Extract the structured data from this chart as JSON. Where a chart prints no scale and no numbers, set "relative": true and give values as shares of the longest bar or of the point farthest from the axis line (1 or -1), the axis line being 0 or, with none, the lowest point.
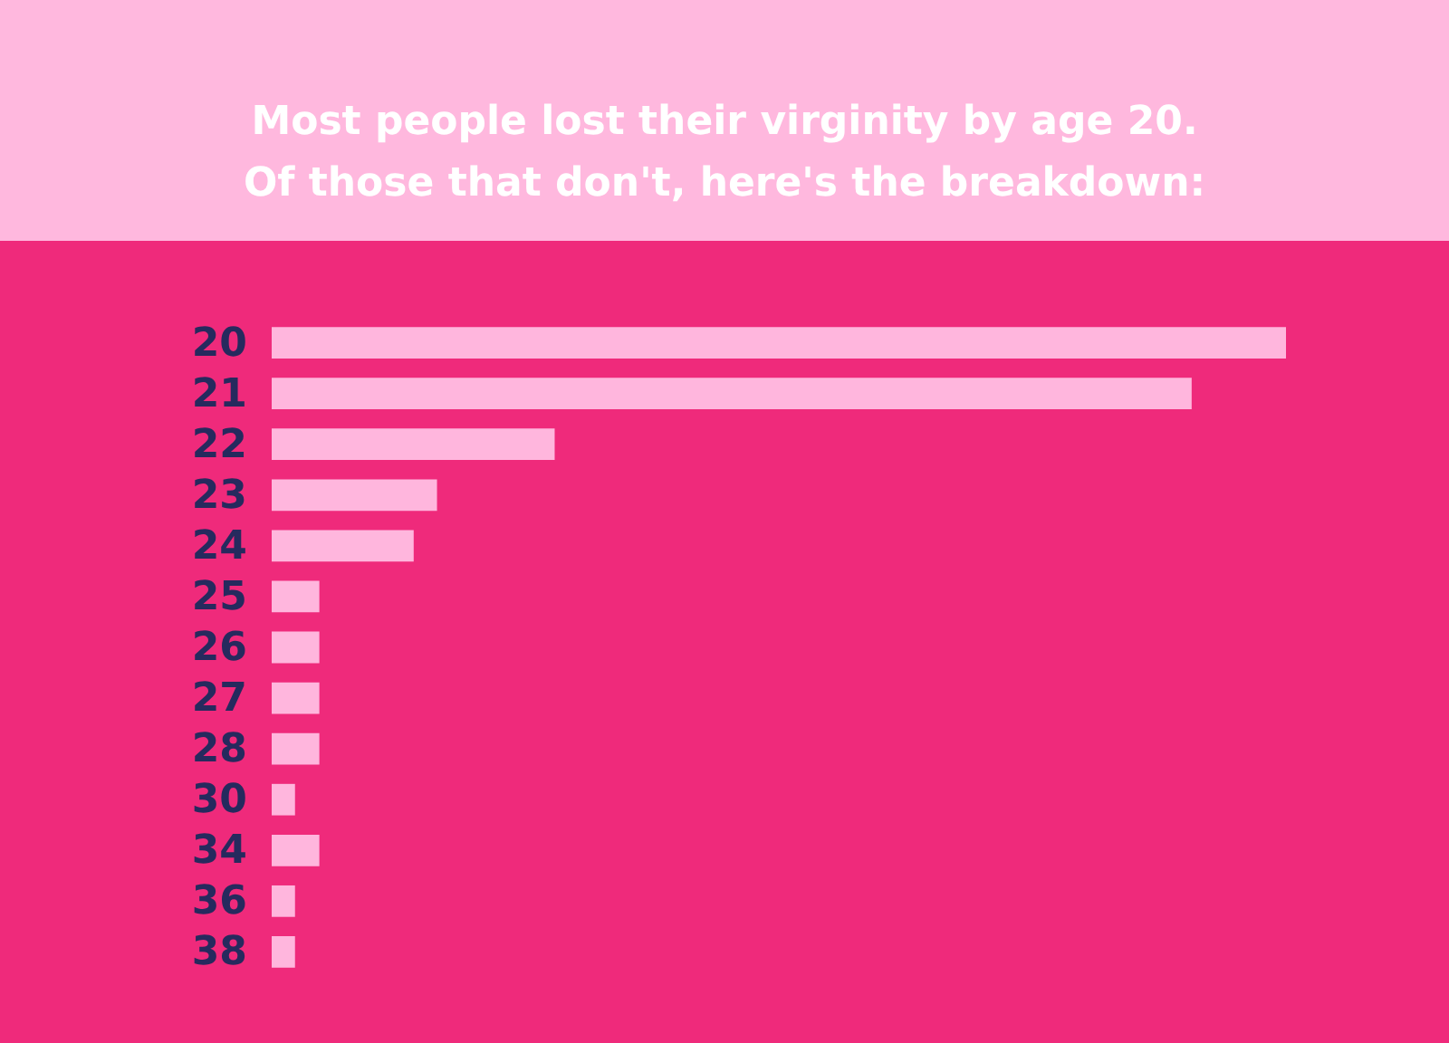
{
  "chart_data": {
    "type": "bar",
    "orientation": "horizontal",
    "relative": true,
    "title": "Most people lost their virginity by age 20.",
    "subtitle": "Of those that don't, here's the breakdown:",
    "categories": [
      "20",
      "21",
      "22",
      "23",
      "24",
      "25",
      "26",
      "27",
      "28",
      "30",
      "34",
      "36",
      "38"
    ],
    "values": [
      1,
      0.907,
      0.279,
      0.163,
      0.14,
      0.047,
      0.047,
      0.047,
      0.047,
      0.023,
      0.047,
      0.023,
      0.023
    ],
    "color": "#ffb6dd"
  }
}
